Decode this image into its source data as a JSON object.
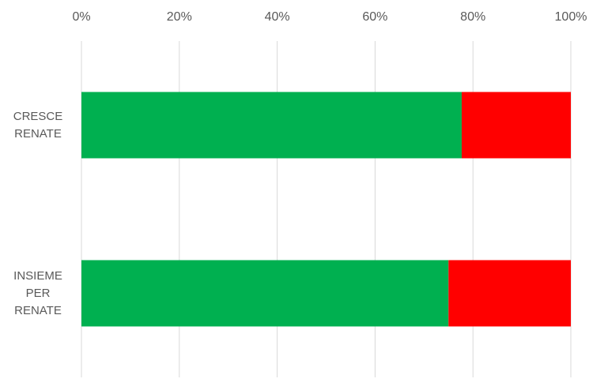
{
  "chart_data": {
    "type": "stacked-bar-horizontal",
    "categories": [
      "CRESCE RENATE",
      "INSIEME PER RENATE"
    ],
    "series": [
      {
        "color": "#00b050",
        "values": [
          77.7,
          75.0
        ]
      },
      {
        "color": "#ff0000",
        "values": [
          22.3,
          25.0
        ]
      }
    ],
    "xlim": [
      0,
      100
    ],
    "xticks": [
      {
        "value": 0,
        "label": "0%"
      },
      {
        "value": 20,
        "label": "20%"
      },
      {
        "value": 40,
        "label": "40%"
      },
      {
        "value": 60,
        "label": "60%"
      },
      {
        "value": 80,
        "label": "80%"
      },
      {
        "value": 100,
        "label": "100%"
      }
    ],
    "grid": true
  }
}
